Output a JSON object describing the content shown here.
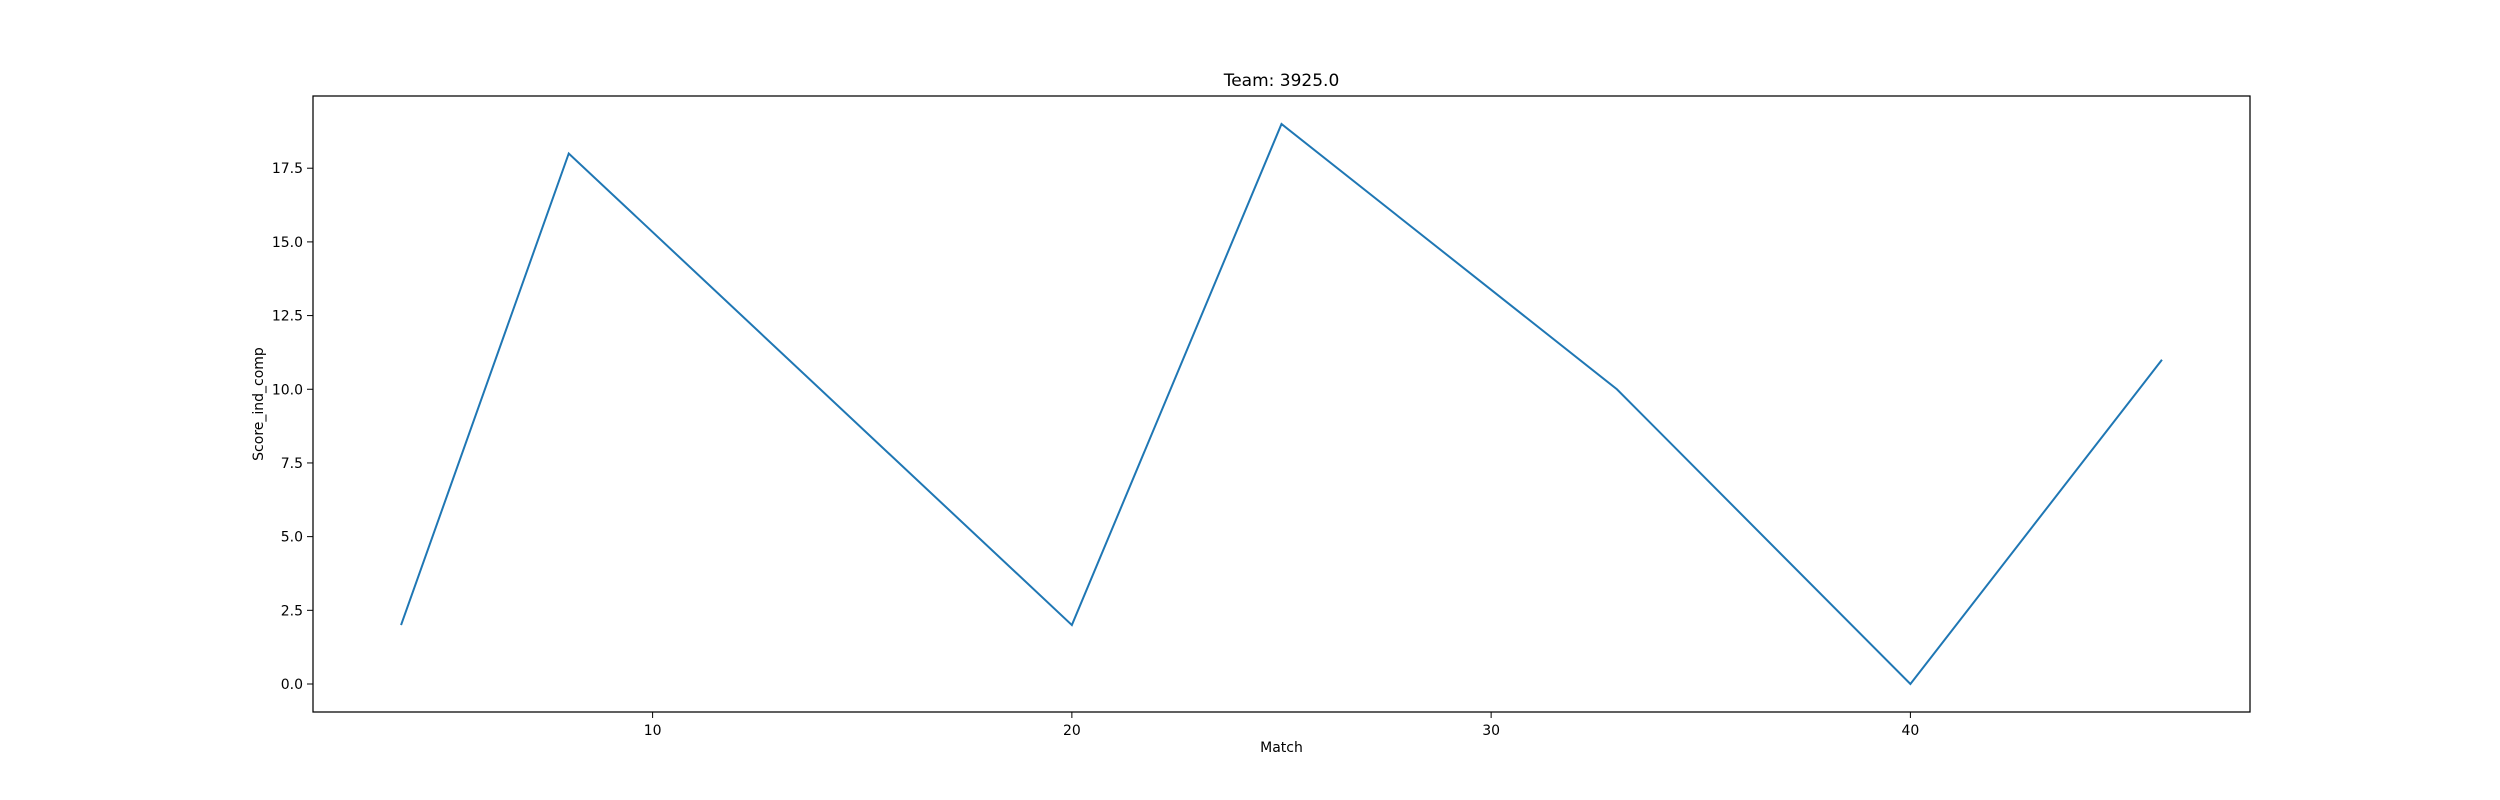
{
  "chart_data": {
    "type": "line",
    "title": "Team: 3925.0",
    "xlabel": "Match",
    "ylabel": "Score_ind_comp",
    "x": [
      4,
      8,
      20,
      25,
      33,
      40,
      46
    ],
    "series": [
      {
        "values": [
          2,
          18,
          2,
          19,
          10,
          0,
          11
        ],
        "color": "#1f77b4"
      }
    ],
    "xlim": [
      1.9,
      48.1
    ],
    "ylim": [
      -0.95,
      19.95
    ],
    "xticks": [
      10,
      20,
      30,
      40
    ],
    "xtick_labels": [
      "10",
      "20",
      "30",
      "40"
    ],
    "yticks": [
      0,
      2.5,
      5,
      7.5,
      10,
      12.5,
      15,
      17.5
    ],
    "ytick_labels": [
      "0.0",
      "2.5",
      "5.0",
      "7.5",
      "10.0",
      "12.5",
      "15.0",
      "17.5"
    ],
    "grid": false,
    "legend": "none"
  }
}
